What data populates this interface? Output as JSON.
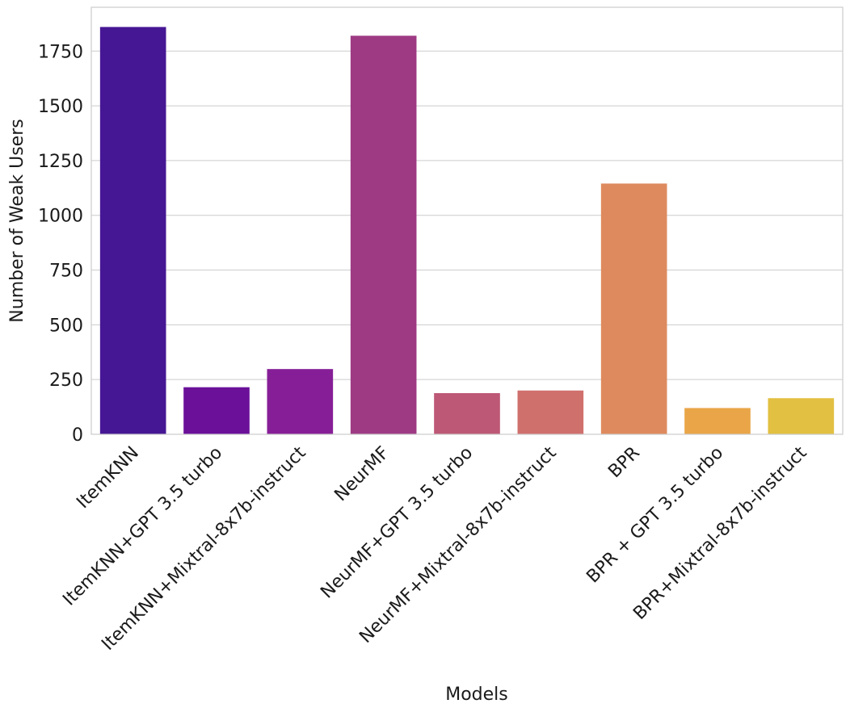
{
  "chart_data": {
    "type": "bar",
    "title": "",
    "xlabel": "Models",
    "ylabel": "Number of Weak Users",
    "ylim": [
      0,
      1950
    ],
    "yticks": [
      0,
      250,
      500,
      750,
      1000,
      1250,
      1500,
      1750
    ],
    "grid": "horizontal",
    "categories": [
      "ItemKNN",
      "ItemKNN+GPT 3.5 turbo",
      "ItemKNN+Mixtral-8x7b-instruct",
      "NeurMF",
      "NeurMF+GPT 3.5 turbo",
      "NeurMF+Mixtral-8x7b-instruct",
      "BPR",
      "BPR + GPT 3.5 turbo",
      "BPR+Mixtral-8x7b-instruct"
    ],
    "values": [
      1860,
      215,
      298,
      1820,
      188,
      200,
      1145,
      120,
      165
    ],
    "colors": [
      "#461794",
      "#6b1199",
      "#861f97",
      "#9e3a84",
      "#bd5876",
      "#d0706d",
      "#de8a5e",
      "#e9a548",
      "#e2c041"
    ]
  }
}
